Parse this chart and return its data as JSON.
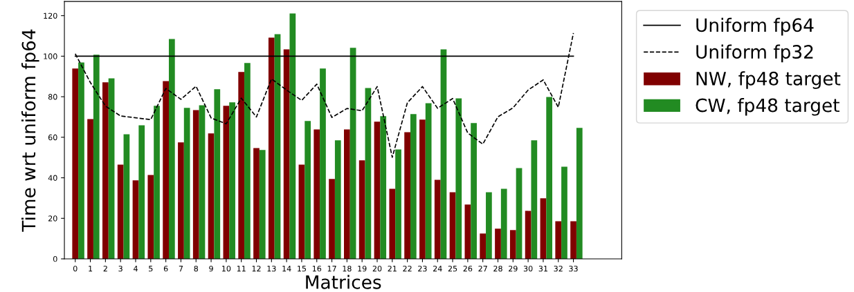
{
  "chart_data": {
    "type": "bar",
    "xlabel": "Matrices",
    "ylabel": "Time wrt uniform fp64",
    "categories": [
      "0",
      "1",
      "2",
      "3",
      "4",
      "5",
      "6",
      "7",
      "8",
      "9",
      "10",
      "11",
      "12",
      "13",
      "14",
      "15",
      "16",
      "17",
      "18",
      "19",
      "20",
      "21",
      "22",
      "23",
      "24",
      "25",
      "26",
      "27",
      "28",
      "29",
      "30",
      "31",
      "32",
      "33"
    ],
    "series": [
      {
        "name": "Uniform fp64",
        "type": "line",
        "line_style": "solid",
        "color": "#000000",
        "values": [
          100,
          100,
          100,
          100,
          100,
          100,
          100,
          100,
          100,
          100,
          100,
          100,
          100,
          100,
          100,
          100,
          100,
          100,
          100,
          100,
          100,
          100,
          100,
          100,
          100,
          100,
          100,
          100,
          100,
          100,
          100,
          100,
          100,
          100
        ]
      },
      {
        "name": "Uniform fp32",
        "type": "line",
        "line_style": "dashed",
        "color": "#000000",
        "values": [
          101.2,
          87,
          75.4,
          70.5,
          69.6,
          68.7,
          84.1,
          78.7,
          85.2,
          69.5,
          66.6,
          79.3,
          70.0,
          88.8,
          83.3,
          78.2,
          86.2,
          69.8,
          74.2,
          73.1,
          85.0,
          50.1,
          77.0,
          85.0,
          74.3,
          79.1,
          62.1,
          56.6,
          70.1,
          74.5,
          83.3,
          88.3,
          74.8,
          111.4
        ]
      },
      {
        "name": "NW, fp48 target",
        "color": "#800000",
        "values": [
          93.9,
          69.0,
          87.1,
          46.5,
          38.7,
          41.4,
          87.7,
          57.5,
          73.4,
          61.9,
          75.5,
          92.2,
          54.7,
          109.2,
          103.4,
          46.5,
          63.9,
          39.4,
          63.9,
          48.6,
          67.7,
          34.6,
          62.5,
          68.7,
          39.0,
          32.9,
          26.8,
          12.5,
          14.9,
          14.2,
          23.7,
          29.9,
          18.6,
          18.6
        ]
      },
      {
        "name": "CW, fp48 target",
        "color": "#228b22",
        "values": [
          96.9,
          100.7,
          89.1,
          61.5,
          65.9,
          75.5,
          108.5,
          74.5,
          75.8,
          83.7,
          77.2,
          96.6,
          53.7,
          110.9,
          121.1,
          68.0,
          93.9,
          58.5,
          104.1,
          84.3,
          70.4,
          54.0,
          71.4,
          76.8,
          103.4,
          79.2,
          67.0,
          32.9,
          34.6,
          44.8,
          58.5,
          79.9,
          45.5,
          64.6
        ]
      }
    ],
    "ylim": [
      0,
      127
    ],
    "yticks": [
      0,
      20,
      40,
      60,
      80,
      100,
      120
    ],
    "grid": false,
    "legend": "top right"
  }
}
